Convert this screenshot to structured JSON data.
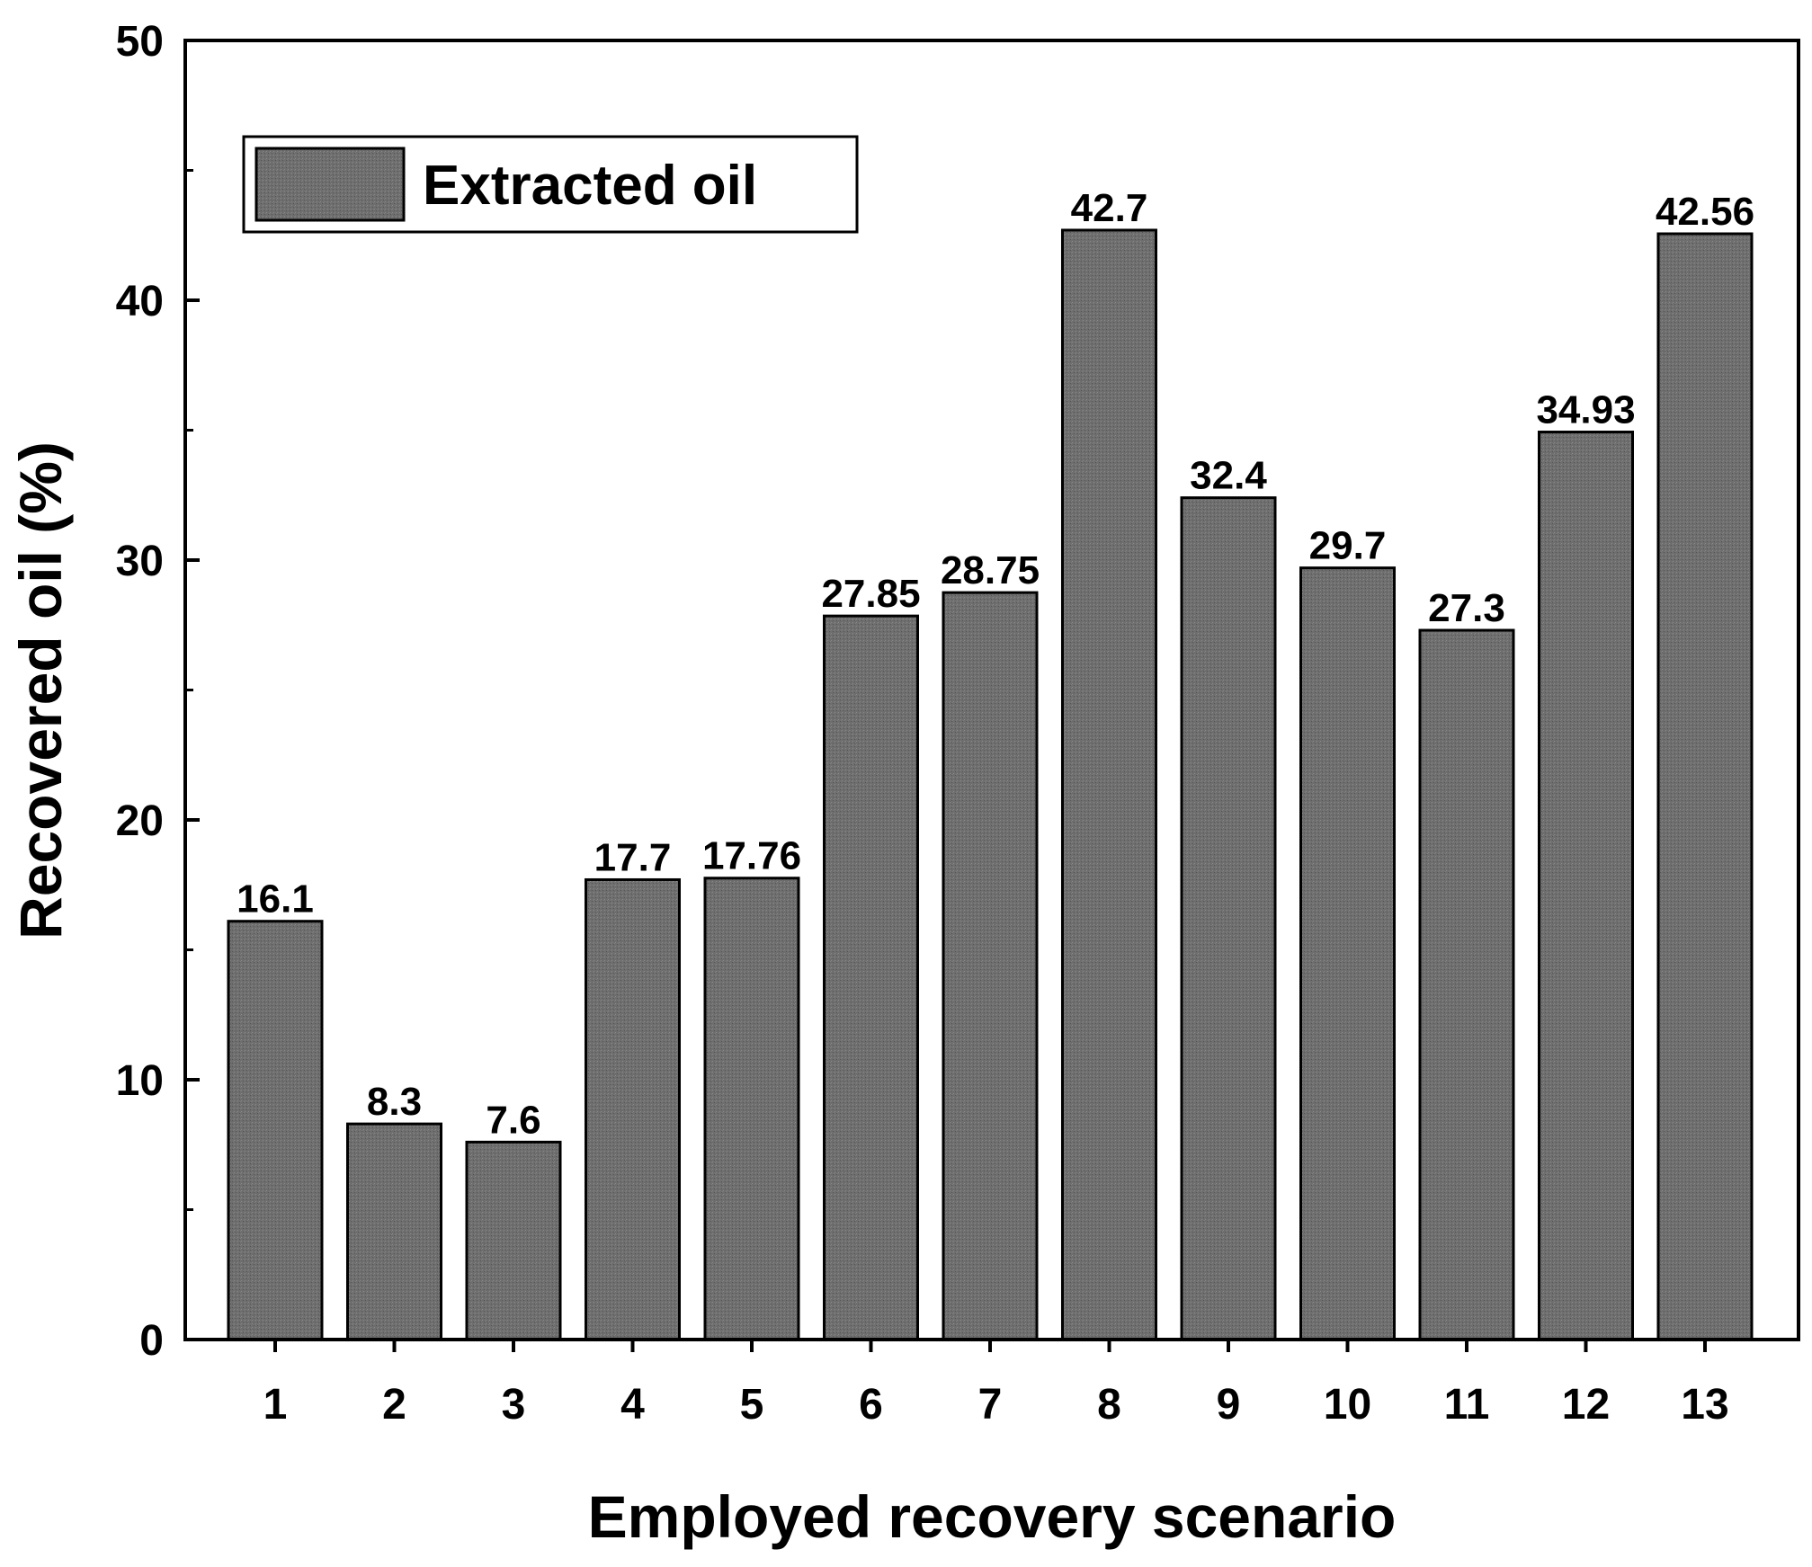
{
  "chart_data": {
    "type": "bar",
    "title": "",
    "xlabel": "Employed recovery scenario",
    "ylabel": "Recovered oil (%)",
    "categories": [
      "1",
      "2",
      "3",
      "4",
      "5",
      "6",
      "7",
      "8",
      "9",
      "10",
      "11",
      "12",
      "13"
    ],
    "series": [
      {
        "name": "Extracted oil",
        "values": [
          16.1,
          8.3,
          7.6,
          17.7,
          17.76,
          27.85,
          28.75,
          42.7,
          32.4,
          29.7,
          27.3,
          34.93,
          42.56
        ],
        "value_labels": [
          "16.1",
          "8.3",
          "7.6",
          "17.7",
          "17.76",
          "27.85",
          "28.75",
          "42.7",
          "32.4",
          "29.7",
          "27.3",
          "34.93",
          "42.56"
        ],
        "color": "#6e6e6e"
      }
    ],
    "ylim": [
      0,
      50
    ],
    "yticks": [
      "0",
      "10",
      "20",
      "30",
      "40",
      "50"
    ],
    "y_minor_step": 5,
    "grid": false,
    "legend_position": "top-left",
    "axis_color": "#000000"
  }
}
